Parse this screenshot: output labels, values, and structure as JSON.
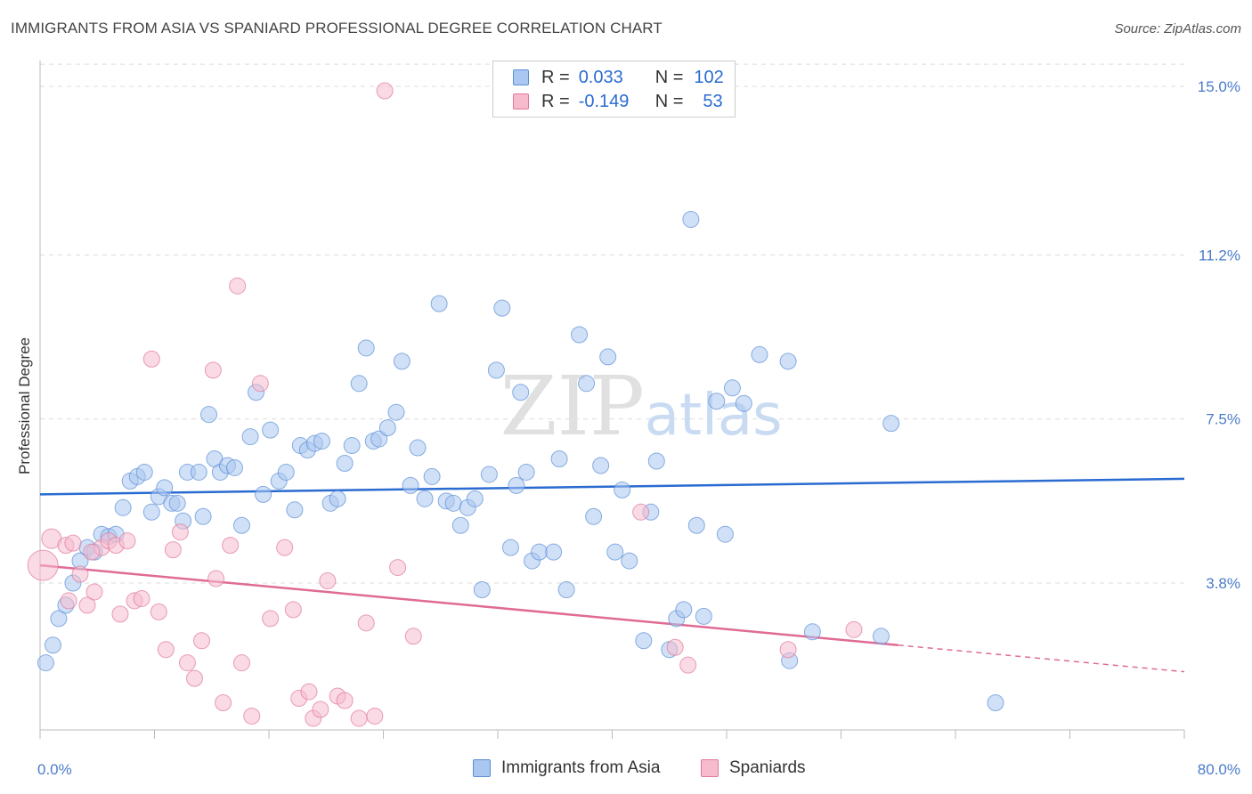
{
  "title": "IMMIGRANTS FROM ASIA VS SPANIARD PROFESSIONAL DEGREE CORRELATION CHART",
  "source": "Source: ZipAtlas.com",
  "watermark": "ZIPatlas",
  "legend": {
    "rows": [
      {
        "r_label": "R =",
        "r_value": "0.033",
        "n_label": "N =",
        "n_value": "102",
        "color": "#a9c7f0",
        "border": "#5b8fd6"
      },
      {
        "r_label": "R =",
        "r_value": "-0.149",
        "n_label": "N =",
        "n_value": "53",
        "color": "#f6bccd",
        "border": "#e07898"
      }
    ]
  },
  "bottom_legend": {
    "asia": "Immigrants from Asia",
    "spaniards": "Spaniards"
  },
  "chart_data": {
    "type": "scatter",
    "title": "IMMIGRANTS FROM ASIA VS SPANIARD PROFESSIONAL DEGREE CORRELATION CHART",
    "xlabel": "",
    "ylabel": "Professional Degree",
    "xlim": [
      0,
      80
    ],
    "ylim": [
      0,
      15.5
    ],
    "x_tick_labels": [
      "0.0%",
      "80.0%"
    ],
    "y_ticks": [
      3.8,
      7.5,
      11.2,
      15.0
    ],
    "y_tick_labels": [
      "3.8%",
      "7.5%",
      "11.2%",
      "15.0%"
    ],
    "grid": true,
    "series": [
      {
        "name": "Immigrants from Asia",
        "color": "#a9c7f0",
        "edge": "#5b8fd6",
        "trend": {
          "x0": 0,
          "y0": 5.8,
          "x1": 80,
          "y1": 6.15,
          "color": "#2a6bd1"
        },
        "points": [
          [
            0.4,
            2.0
          ],
          [
            0.9,
            2.4
          ],
          [
            1.3,
            3.0
          ],
          [
            1.8,
            3.3
          ],
          [
            2.3,
            3.8
          ],
          [
            2.8,
            4.3
          ],
          [
            3.3,
            4.6
          ],
          [
            3.8,
            4.5
          ],
          [
            4.3,
            4.9
          ],
          [
            4.8,
            4.85
          ],
          [
            5.3,
            4.9
          ],
          [
            5.8,
            5.5
          ],
          [
            6.3,
            6.1
          ],
          [
            6.8,
            6.2
          ],
          [
            7.3,
            6.3
          ],
          [
            7.8,
            5.4
          ],
          [
            8.3,
            5.75
          ],
          [
            8.7,
            5.95
          ],
          [
            9.2,
            5.6
          ],
          [
            9.6,
            5.6
          ],
          [
            10.0,
            5.2
          ],
          [
            10.3,
            6.3
          ],
          [
            11.1,
            6.3
          ],
          [
            11.8,
            7.6
          ],
          [
            12.2,
            6.6
          ],
          [
            12.6,
            6.3
          ],
          [
            13.1,
            6.45
          ],
          [
            13.6,
            6.4
          ],
          [
            14.1,
            5.1
          ],
          [
            14.7,
            7.1
          ],
          [
            15.1,
            8.1
          ],
          [
            15.6,
            5.8
          ],
          [
            16.1,
            7.25
          ],
          [
            16.7,
            6.1
          ],
          [
            17.2,
            6.3
          ],
          [
            17.8,
            5.45
          ],
          [
            18.2,
            6.9
          ],
          [
            18.7,
            6.8
          ],
          [
            19.2,
            6.95
          ],
          [
            19.7,
            7.0
          ],
          [
            20.3,
            5.6
          ],
          [
            20.8,
            5.7
          ],
          [
            21.3,
            6.5
          ],
          [
            21.8,
            6.9
          ],
          [
            22.3,
            8.3
          ],
          [
            22.8,
            9.1
          ],
          [
            23.3,
            7.0
          ],
          [
            23.7,
            7.05
          ],
          [
            24.3,
            7.3
          ],
          [
            24.9,
            7.65
          ],
          [
            25.3,
            8.8
          ],
          [
            25.9,
            6.0
          ],
          [
            26.4,
            6.85
          ],
          [
            26.9,
            5.7
          ],
          [
            27.4,
            6.2
          ],
          [
            27.9,
            10.1
          ],
          [
            28.4,
            5.65
          ],
          [
            28.9,
            5.6
          ],
          [
            29.4,
            5.1
          ],
          [
            29.9,
            5.5
          ],
          [
            30.4,
            5.7
          ],
          [
            30.9,
            3.65
          ],
          [
            31.4,
            6.25
          ],
          [
            31.9,
            8.6
          ],
          [
            32.3,
            10.0
          ],
          [
            32.9,
            4.6
          ],
          [
            33.3,
            6.0
          ],
          [
            33.6,
            8.1
          ],
          [
            34.0,
            6.3
          ],
          [
            34.4,
            4.3
          ],
          [
            34.9,
            4.5
          ],
          [
            35.9,
            4.5
          ],
          [
            36.3,
            6.6
          ],
          [
            36.8,
            3.65
          ],
          [
            37.7,
            9.4
          ],
          [
            38.2,
            8.3
          ],
          [
            38.7,
            5.3
          ],
          [
            39.2,
            6.45
          ],
          [
            39.7,
            8.9
          ],
          [
            40.2,
            4.5
          ],
          [
            40.7,
            5.9
          ],
          [
            41.2,
            4.3
          ],
          [
            42.2,
            2.5
          ],
          [
            42.7,
            5.4
          ],
          [
            43.1,
            6.55
          ],
          [
            44.0,
            2.3
          ],
          [
            44.5,
            3.0
          ],
          [
            45.0,
            3.2
          ],
          [
            45.5,
            12.0
          ],
          [
            45.9,
            5.1
          ],
          [
            46.4,
            3.05
          ],
          [
            47.3,
            7.9
          ],
          [
            47.9,
            4.9
          ],
          [
            48.4,
            8.2
          ],
          [
            49.2,
            7.85
          ],
          [
            50.3,
            8.95
          ],
          [
            52.3,
            8.8
          ],
          [
            52.4,
            2.05
          ],
          [
            54.0,
            2.7
          ],
          [
            58.8,
            2.6
          ],
          [
            59.5,
            7.4
          ],
          [
            66.8,
            1.1
          ],
          [
            11.4,
            5.3
          ]
        ]
      },
      {
        "name": "Spaniards",
        "color": "#f6bccd",
        "edge": "#e07898",
        "trend": {
          "x0": 0,
          "y0": 4.2,
          "x1": 60,
          "y1": 2.4,
          "x2": 80,
          "y2": 1.8,
          "color": "#e06b95"
        },
        "points": [
          [
            0.2,
            4.2
          ],
          [
            0.8,
            4.8
          ],
          [
            1.8,
            4.65
          ],
          [
            2.3,
            4.7
          ],
          [
            2.8,
            4.0
          ],
          [
            3.3,
            3.3
          ],
          [
            3.8,
            3.6
          ],
          [
            4.3,
            4.6
          ],
          [
            4.8,
            4.75
          ],
          [
            5.3,
            4.65
          ],
          [
            5.6,
            3.1
          ],
          [
            6.1,
            4.75
          ],
          [
            6.6,
            3.4
          ],
          [
            7.1,
            3.45
          ],
          [
            7.8,
            8.85
          ],
          [
            8.3,
            3.15
          ],
          [
            8.8,
            2.3
          ],
          [
            9.3,
            4.55
          ],
          [
            9.8,
            4.95
          ],
          [
            10.3,
            2.0
          ],
          [
            10.8,
            1.65
          ],
          [
            11.3,
            2.5
          ],
          [
            12.1,
            8.6
          ],
          [
            12.3,
            3.9
          ],
          [
            12.8,
            1.1
          ],
          [
            13.3,
            4.65
          ],
          [
            13.8,
            10.5
          ],
          [
            14.1,
            2.0
          ],
          [
            14.8,
            0.8
          ],
          [
            15.4,
            8.3
          ],
          [
            16.1,
            3.0
          ],
          [
            17.1,
            4.6
          ],
          [
            17.7,
            3.2
          ],
          [
            18.1,
            1.2
          ],
          [
            18.8,
            1.35
          ],
          [
            19.1,
            0.75
          ],
          [
            19.6,
            0.95
          ],
          [
            20.1,
            3.85
          ],
          [
            20.8,
            1.25
          ],
          [
            21.3,
            1.15
          ],
          [
            22.3,
            0.75
          ],
          [
            22.8,
            2.9
          ],
          [
            23.4,
            0.8
          ],
          [
            24.1,
            14.9
          ],
          [
            25.0,
            4.15
          ],
          [
            26.1,
            2.6
          ],
          [
            42.0,
            5.4
          ],
          [
            44.4,
            2.35
          ],
          [
            45.3,
            1.95
          ],
          [
            52.3,
            2.3
          ],
          [
            56.9,
            2.75
          ],
          [
            3.6,
            4.5
          ],
          [
            2.0,
            3.4
          ]
        ]
      }
    ]
  }
}
